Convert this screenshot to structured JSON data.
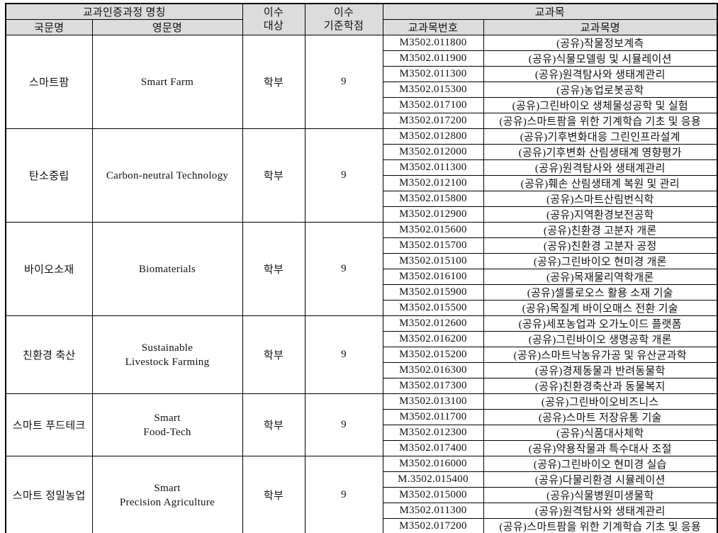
{
  "page": {
    "background": "#ffffff"
  },
  "table": {
    "header_bg": "#dcdcdc",
    "border_color": "#000000",
    "header": {
      "program_title": "교과인증과정 명칭",
      "korean_name": "국문명",
      "english_name": "영문명",
      "target_top": "이수",
      "target_bottom": "대상",
      "credits_top": "이수",
      "credits_bottom": "기준학점",
      "courses_title": "교과목",
      "course_number": "교과목번호",
      "course_name": "교과목명"
    },
    "programs": [
      {
        "korean_name": "스마트팜",
        "english_lines": [
          "Smart Farm"
        ],
        "target": "학부",
        "credits": "9",
        "courses": [
          {
            "number": "M3502.011800",
            "name": "(공유)작물정보계측"
          },
          {
            "number": "M3502.011900",
            "name": "(공유)식물모델링 및 시뮬레이션"
          },
          {
            "number": "M3502.011300",
            "name": "(공유)원격탐사와 생태계관리"
          },
          {
            "number": "M3502.015300",
            "name": "(공유)농업로봇공학"
          },
          {
            "number": "M3502.017100",
            "name": "(공유)그린바이오 생체물성공학 및 실험"
          },
          {
            "number": "M3502.017200",
            "name": "(공유)스마트팜을 위한 기계학습 기초 및 응용"
          }
        ]
      },
      {
        "korean_name": "탄소중립",
        "english_lines": [
          "Carbon-neutral Technology"
        ],
        "target": "학부",
        "credits": "9",
        "courses": [
          {
            "number": "M3502.012800",
            "name": "(공유)기후변화대응 그린인프라설계"
          },
          {
            "number": "M3502.012000",
            "name": "(공유)기후변화 산림생태계 영향평가"
          },
          {
            "number": "M3502.011300",
            "name": "(공유)원격탐사와 생태계관리"
          },
          {
            "number": "M3502.012100",
            "name": "(공유)훼손 산림생태계 복원 및 관리"
          },
          {
            "number": "M3502.015800",
            "name": "(공유)스마트산림번식학"
          },
          {
            "number": "M3502.012900",
            "name": "(공유)지역환경보전공학"
          }
        ]
      },
      {
        "korean_name": "바이오소재",
        "english_lines": [
          "Biomaterials"
        ],
        "target": "학부",
        "credits": "9",
        "courses": [
          {
            "number": "M3502.015600",
            "name": "(공유)친환경 고분자 개론"
          },
          {
            "number": "M3502.015700",
            "name": "(공유)친환경 고분자 공정"
          },
          {
            "number": "M3502.015100",
            "name": "(공유)그린바이오 현미경 개론"
          },
          {
            "number": "M3502.016100",
            "name": "(공유)목재물리역학개론"
          },
          {
            "number": "M3502.015900",
            "name": "(공유)셀룰로오스 활용 소재 기술"
          },
          {
            "number": "M3502.015500",
            "name": "(공유)목질계 바이오매스 전환 기술"
          }
        ]
      },
      {
        "korean_name": "친환경 축산",
        "english_lines": [
          "Sustainable",
          "Livestock Farming"
        ],
        "target": "학부",
        "credits": "9",
        "courses": [
          {
            "number": "M3502.012600",
            "name": "(공유)세포농업과 오가노이드 플랫폼"
          },
          {
            "number": "M3502.016200",
            "name": "(공유)그린바이오 생명공학 개론"
          },
          {
            "number": "M3502.015200",
            "name": "(공유)스마트낙농유가공 및 유산균과학"
          },
          {
            "number": "M3502.016300",
            "name": "(공유)경제동물과 반려동물학"
          },
          {
            "number": "M3502.017300",
            "name": "(공유)친환경축산과 동물복지"
          }
        ]
      },
      {
        "korean_name": "스마트 푸드테크",
        "english_lines": [
          "Smart",
          "Food-Tech"
        ],
        "target": "학부",
        "credits": "9",
        "courses": [
          {
            "number": "M3502.013100",
            "name": "(공유)그린바이오비즈니스"
          },
          {
            "number": "M3502.011700",
            "name": "(공유)스마트 저장유통 기술"
          },
          {
            "number": "M3502.012300",
            "name": "(공유)식품대사체학"
          },
          {
            "number": "M3502.017400",
            "name": "(공유)약용작물과 특수대사 조절"
          }
        ]
      },
      {
        "korean_name": "스마트 정밀농업",
        "english_lines": [
          "Smart",
          "Precision Agriculture"
        ],
        "target": "학부",
        "credits": "9",
        "courses": [
          {
            "number": "M3502.016000",
            "name": "(공유)그린바이오 현미경 실습"
          },
          {
            "number": "M.3502.015400",
            "name": "(공유)다물리환경 시뮬레이션"
          },
          {
            "number": "M3502.015000",
            "name": "(공유)식물병원미생물학"
          },
          {
            "number": "M3502.011300",
            "name": "(공유)원격탐사와 생태계관리"
          },
          {
            "number": "M3502.017200",
            "name": "(공유)스마트팜을 위한 기계학습 기초 및 응용"
          }
        ]
      }
    ]
  }
}
